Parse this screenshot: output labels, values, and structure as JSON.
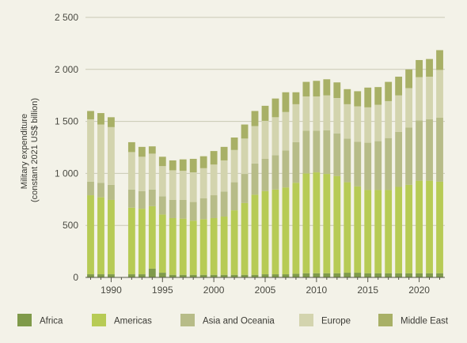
{
  "chart_data": {
    "type": "bar",
    "stacked": true,
    "title": "",
    "ylabel_lines": [
      "Military expenditure",
      "(constant 2021 US$ billion)"
    ],
    "xlabel": "",
    "ylim": [
      0,
      2500
    ],
    "yticks": [
      0,
      500,
      1000,
      1500,
      2000,
      2500
    ],
    "yticks_text": [
      "0",
      "500",
      "1 000",
      "1 500",
      "2 000",
      "2 500"
    ],
    "xticks": [
      1990,
      1995,
      2000,
      2005,
      2010,
      2015,
      2020
    ],
    "xticks_text": [
      "1990",
      "1995",
      "2000",
      "2005",
      "2010",
      "2015",
      "2020"
    ],
    "grid": "horizontal",
    "legend_position": "bottom",
    "years": [
      1988,
      1989,
      1990,
      1992,
      1993,
      1994,
      1995,
      1996,
      1997,
      1998,
      1999,
      2000,
      2001,
      2002,
      2003,
      2004,
      2005,
      2006,
      2007,
      2008,
      2009,
      2010,
      2011,
      2012,
      2013,
      2014,
      2015,
      2016,
      2017,
      2018,
      2019,
      2020,
      2021,
      2022
    ],
    "series": [
      {
        "name": "Africa",
        "color": "#7f9a4a",
        "values": [
          30,
          30,
          30,
          30,
          30,
          85,
          45,
          25,
          25,
          25,
          25,
          25,
          25,
          25,
          25,
          25,
          30,
          30,
          30,
          35,
          40,
          40,
          40,
          40,
          45,
          45,
          40,
          40,
          40,
          40,
          40,
          40,
          40,
          40
        ]
      },
      {
        "name": "Americas",
        "color": "#b7cb55",
        "values": [
          760,
          740,
          715,
          640,
          630,
          600,
          560,
          545,
          540,
          520,
          535,
          545,
          560,
          620,
          690,
          770,
          800,
          815,
          835,
          875,
          960,
          970,
          955,
          935,
          870,
          830,
          800,
          800,
          800,
          830,
          850,
          890,
          890,
          880
        ]
      },
      {
        "name": "Asia and Oceania",
        "color": "#b7bc88",
        "values": [
          130,
          140,
          145,
          175,
          170,
          160,
          175,
          175,
          180,
          180,
          200,
          220,
          240,
          270,
          280,
          300,
          310,
          330,
          355,
          390,
          410,
          400,
          420,
          410,
          420,
          430,
          455,
          470,
          500,
          530,
          550,
          580,
          590,
          615
        ]
      },
      {
        "name": "Europe",
        "color": "#d3d4ae",
        "values": [
          600,
          560,
          555,
          360,
          330,
          345,
          290,
          285,
          280,
          285,
          290,
          295,
          300,
          310,
          340,
          360,
          365,
          365,
          370,
          365,
          330,
          330,
          335,
          340,
          330,
          340,
          340,
          350,
          355,
          350,
          380,
          415,
          410,
          460
        ]
      },
      {
        "name": "Middle East",
        "color": "#a8b066",
        "values": [
          80,
          110,
          95,
          95,
          95,
          70,
          90,
          95,
          110,
          130,
          115,
          130,
          130,
          120,
          135,
          145,
          145,
          180,
          190,
          115,
          140,
          150,
          155,
          150,
          145,
          145,
          190,
          170,
          185,
          180,
          180,
          165,
          170,
          190
        ]
      }
    ]
  }
}
